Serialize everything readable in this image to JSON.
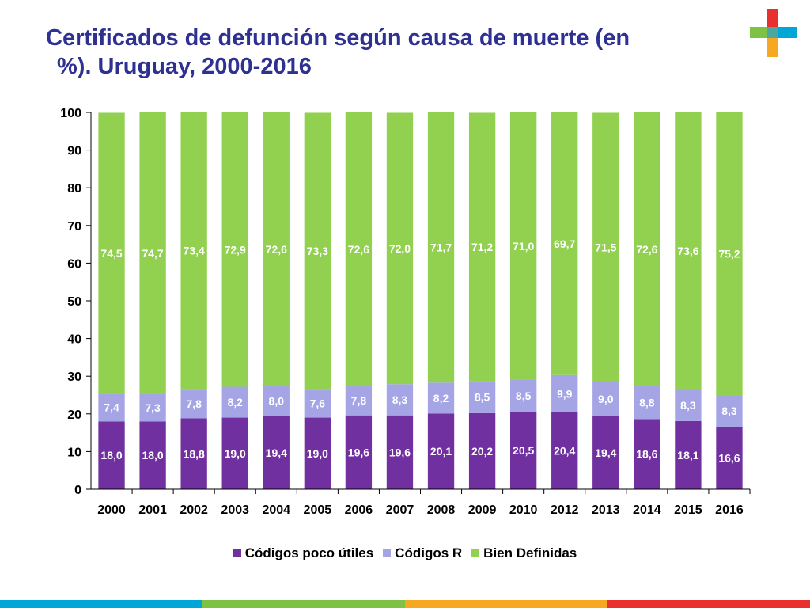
{
  "title_line1": "Certificados de defunción según causa de muerte (en",
  "title_line2": "%).  Uruguay, 2000-2016",
  "colors": {
    "title": "#2e3192",
    "poco_utiles": "#7030a0",
    "codigos_r": "#a5a5e6",
    "bien_definidas": "#92d050",
    "logo_red": "#e8312f",
    "logo_green": "#7dc242",
    "logo_blue": "#00a6d6",
    "logo_orange": "#f7a823"
  },
  "chart_data": {
    "type": "bar",
    "stacked": true,
    "categories": [
      "2000",
      "2001",
      "2002",
      "2003",
      "2004",
      "2005",
      "2006",
      "2007",
      "2008",
      "2009",
      "2010",
      "2012",
      "2013",
      "2014",
      "2015",
      "2016"
    ],
    "series": [
      {
        "name": "Códigos poco útiles",
        "values": [
          18.0,
          18.0,
          18.8,
          19.0,
          19.4,
          19.0,
          19.6,
          19.6,
          20.1,
          20.2,
          20.5,
          20.4,
          19.4,
          18.6,
          18.1,
          16.6
        ],
        "labels": [
          "18,0",
          "18,0",
          "18,8",
          "19,0",
          "19,4",
          "19,0",
          "19,6",
          "19,6",
          "20,1",
          "20,2",
          "20,5",
          "20,4",
          "19,4",
          "18,6",
          "18,1",
          "16,6"
        ]
      },
      {
        "name": "Códigos R",
        "values": [
          7.4,
          7.3,
          7.8,
          8.2,
          8.0,
          7.6,
          7.8,
          8.3,
          8.2,
          8.5,
          8.5,
          9.9,
          9.0,
          8.8,
          8.3,
          8.3
        ],
        "labels": [
          "7,4",
          "7,3",
          "7,8",
          "8,2",
          "8,0",
          "7,6",
          "7,8",
          "8,3",
          "8,2",
          "8,5",
          "8,5",
          "9,9",
          "9,0",
          "8,8",
          "8,3",
          "8,3"
        ]
      },
      {
        "name": "Bien Definidas",
        "values": [
          74.5,
          74.7,
          73.4,
          72.9,
          72.6,
          73.3,
          72.6,
          72.0,
          71.7,
          71.2,
          71.0,
          69.7,
          71.5,
          72.6,
          73.6,
          75.2
        ],
        "labels": [
          "74,5",
          "74,7",
          "73,4",
          "72,9",
          "72,6",
          "73,3",
          "72,6",
          "72,0",
          "71,7",
          "71,2",
          "71,0",
          "69,7",
          "71,5",
          "72,6",
          "73,6",
          "75,2"
        ]
      }
    ],
    "ylim": [
      0,
      100
    ],
    "yticks": [
      0,
      10,
      20,
      30,
      40,
      50,
      60,
      70,
      80,
      90,
      100
    ],
    "grid": false,
    "legend_position": "bottom"
  }
}
